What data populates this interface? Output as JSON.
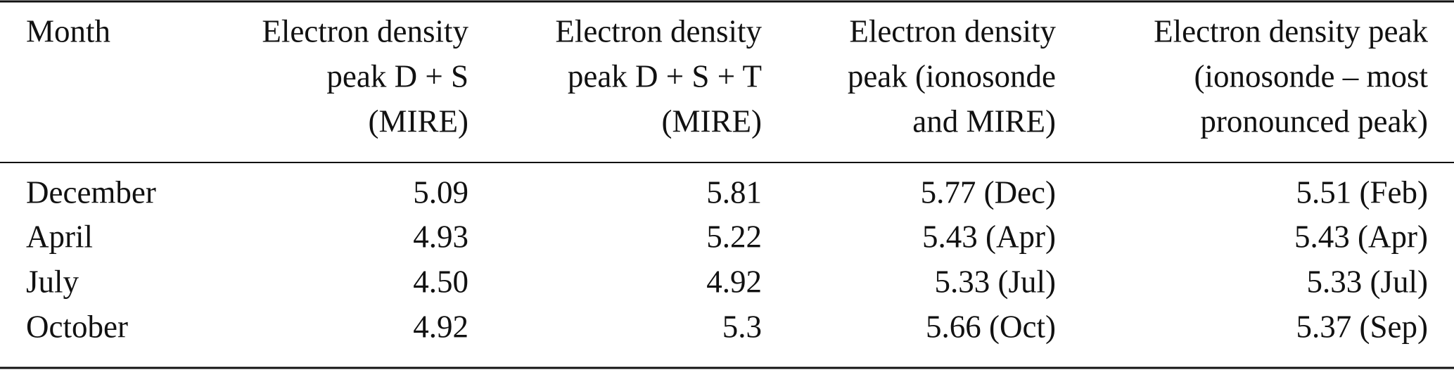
{
  "table": {
    "header": [
      [
        "Month"
      ],
      [
        "Electron density",
        "peak D + S",
        "(MIRE)"
      ],
      [
        "Electron density",
        "peak D + S + T",
        "(MIRE)"
      ],
      [
        "Electron density",
        "peak (ionosonde",
        "and MIRE)"
      ],
      [
        "Electron density peak",
        "(ionosonde – most",
        "pronounced peak)"
      ]
    ],
    "rows": [
      [
        "December",
        "5.09",
        "5.81",
        "5.77 (Dec)",
        "5.51 (Feb)"
      ],
      [
        "April",
        "4.93",
        "5.22",
        "5.43 (Apr)",
        "5.43 (Apr)"
      ],
      [
        "July",
        "4.50",
        "4.92",
        "5.33 (Jul)",
        "5.33 (Jul)"
      ],
      [
        "October",
        "4.92",
        "5.3",
        "5.66 (Oct)",
        "5.37 (Sep)"
      ]
    ]
  }
}
